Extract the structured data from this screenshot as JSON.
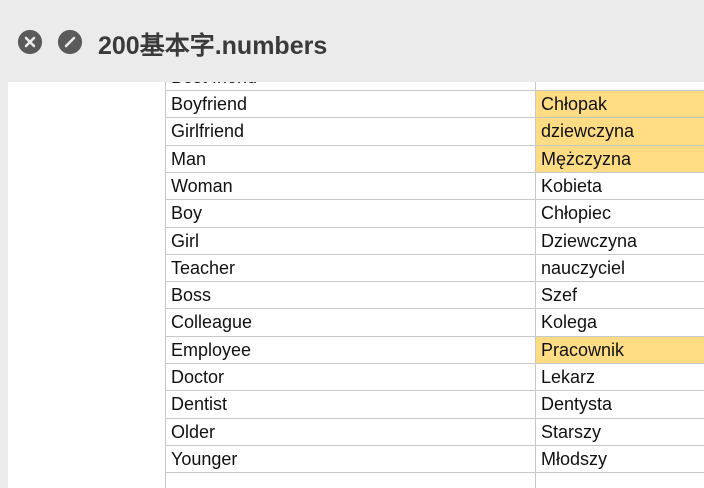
{
  "window": {
    "title": "200基本字.numbers"
  },
  "table": {
    "rows": [
      {
        "english": "Best friend"
      },
      {
        "english": "Boyfriend",
        "polish": "Chłopak",
        "highlight": true
      },
      {
        "english": "Girlfriend",
        "polish": "dziewczyna",
        "highlight": true
      },
      {
        "english": "Man",
        "polish": "Mężczyzna",
        "highlight": true
      },
      {
        "english": "Woman",
        "polish": "Kobieta",
        "highlight": false
      },
      {
        "english": "Boy",
        "polish": "Chłopiec",
        "highlight": false
      },
      {
        "english": "Girl",
        "polish": "Dziewczyna",
        "highlight": false
      },
      {
        "english": "Teacher",
        "polish": "nauczyciel",
        "highlight": false
      },
      {
        "english": "Boss",
        "polish": "Szef",
        "highlight": false
      },
      {
        "english": "Colleague",
        "polish": "Kolega",
        "highlight": false
      },
      {
        "english": "Employee",
        "polish": "Pracownik",
        "highlight": true
      },
      {
        "english": "Doctor",
        "polish": "Lekarz",
        "highlight": false
      },
      {
        "english": "Dentist",
        "polish": "Dentysta",
        "highlight": false
      },
      {
        "english": "Older",
        "polish": "Starszy",
        "highlight": false
      },
      {
        "english": "Younger",
        "polish": "Młodszy",
        "highlight": false
      }
    ]
  }
}
